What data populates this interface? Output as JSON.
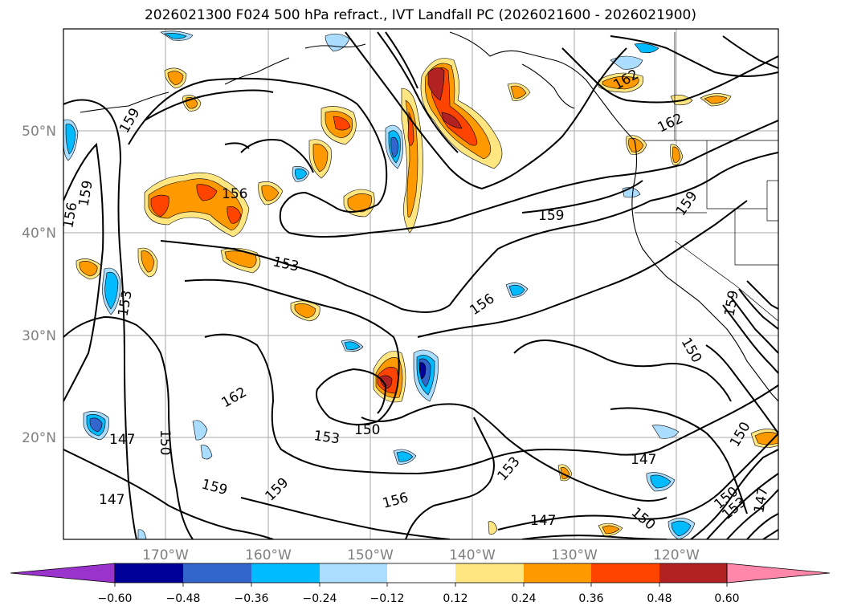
{
  "title": "2026021300 F024 500 hPa refract., IVT Landfall PC (2026021600 - 2026021900)",
  "map": {
    "lat_labels": [
      "50°N",
      "40°N",
      "30°N",
      "20°N"
    ],
    "lon_labels": [
      "170°W",
      "160°W",
      "150°W",
      "140°W",
      "130°W",
      "120°W"
    ],
    "grid": true,
    "contour_labels": [
      "147",
      "147",
      "147",
      "147",
      "147",
      "150",
      "150",
      "150",
      "150",
      "150",
      "150",
      "153",
      "153",
      "153",
      "153",
      "153",
      "156",
      "156",
      "156",
      "156",
      "159",
      "159",
      "159",
      "159",
      "159",
      "159",
      "159",
      "162",
      "162",
      "162"
    ]
  },
  "colorbar": {
    "ticks": [
      "−0.60",
      "−0.48",
      "−0.36",
      "−0.24",
      "−0.12",
      "0.12",
      "0.24",
      "0.36",
      "0.48",
      "0.60"
    ],
    "colors": [
      "#9933cc",
      "#000099",
      "#3366cc",
      "#00bbff",
      "#aaddff",
      "#ffffff",
      "#ffe680",
      "#ff9900",
      "#ff4400",
      "#b22222",
      "#ff88aa"
    ]
  }
}
